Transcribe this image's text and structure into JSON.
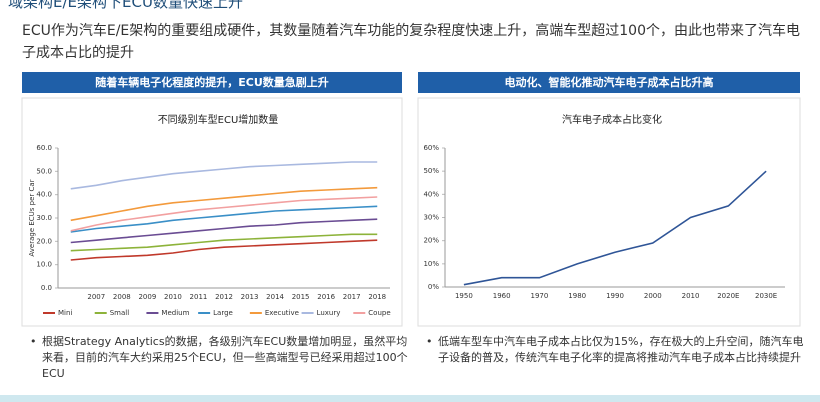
{
  "header": {
    "title": "域架构E/E架构下ECU数量快速上升",
    "lead": "ECU作为汽车E/E架构的重要组成硬件，其数量随着汽车功能的复杂程度快速上升，高端车型超过100个，由此也带来了汽车电子成本占比的提升"
  },
  "sections": [
    {
      "heading": "随着车辆电子化程度的提升，ECU数量急剧上升",
      "bullet": "根据Strategy Analytics的数据，各级别汽车ECU数量增加明显，虽然平均来看，目前的汽车大约采用25个ECU，但一些高端型号已经采用超过100个ECU"
    },
    {
      "heading": "电动化、智能化推动汽车电子成本占比升高",
      "bullet": "低端车型车中汽车电子成本占比仅为15%，存在极大的上升空间，随汽车电子设备的普及，传统汽车电子化率的提高将推动汽车电子成本占比持续提升"
    }
  ],
  "chart_data": [
    {
      "type": "line",
      "title": "不同级别车型ECU增加数量",
      "y_label": "Average ECUs per Car",
      "grid": false,
      "legend": "bottom",
      "categories": [
        null,
        "2007",
        "2008",
        "2009",
        "2010",
        "2011",
        "2012",
        "2013",
        "2014",
        "2015",
        "2016",
        "2017",
        "2018"
      ],
      "ylim": [
        0,
        60
      ],
      "yticks": [
        {
          "value": 0,
          "label": "0.0"
        },
        {
          "value": 10,
          "label": "10.0"
        },
        {
          "value": 20,
          "label": "20.0"
        },
        {
          "value": 30,
          "label": "30.0"
        },
        {
          "value": 40,
          "label": "40.0"
        },
        {
          "value": 50,
          "label": "50.0"
        },
        {
          "value": 60,
          "label": "60.0"
        }
      ],
      "series": [
        {
          "name": "Mini",
          "color": "#c0392b",
          "values": [
            12,
            13,
            13.5,
            14,
            15,
            16.5,
            17.5,
            18,
            18.5,
            19,
            19.5,
            20,
            20.5
          ]
        },
        {
          "name": "Small",
          "color": "#8db33a",
          "values": [
            16,
            16.5,
            17,
            17.5,
            18.5,
            19.5,
            20.5,
            21,
            21.5,
            22,
            22.5,
            23,
            23
          ]
        },
        {
          "name": "Medium",
          "color": "#6a4c93",
          "values": [
            19.5,
            20.5,
            21.5,
            22.5,
            23.5,
            24.5,
            25.5,
            26.5,
            27,
            28,
            28.5,
            29,
            29.5
          ]
        },
        {
          "name": "Large",
          "color": "#3a8fc7",
          "values": [
            24,
            25.5,
            26.5,
            27.5,
            29,
            30,
            31,
            32,
            33,
            33.5,
            34,
            34.5,
            35
          ]
        },
        {
          "name": "Executive",
          "color": "#f39a3c",
          "values": [
            29,
            31,
            33,
            35,
            36.5,
            37.5,
            38.5,
            39.5,
            40.5,
            41.5,
            42,
            42.5,
            43
          ]
        },
        {
          "name": "Luxury",
          "color": "#a9b9e0",
          "values": [
            42.5,
            44,
            46,
            47.5,
            49,
            50,
            51,
            52,
            52.5,
            53,
            53.5,
            54,
            54
          ]
        },
        {
          "name": "Coupe",
          "color": "#f2a0a0",
          "values": [
            24.5,
            27,
            29,
            30.5,
            32,
            33.5,
            34.5,
            35.5,
            36.5,
            37.5,
            38,
            38.5,
            39
          ]
        }
      ]
    },
    {
      "type": "line",
      "title": "汽车电子成本占比变化",
      "grid": false,
      "categories": [
        "1950",
        "1960",
        "1970",
        "1980",
        "1990",
        "2000",
        "2010",
        "2020E",
        "2030E"
      ],
      "ylim": [
        0,
        60
      ],
      "yticks": [
        {
          "value": 0,
          "label": "0%"
        },
        {
          "value": 10,
          "label": "10%"
        },
        {
          "value": 20,
          "label": "20%"
        },
        {
          "value": 30,
          "label": "30%"
        },
        {
          "value": 40,
          "label": "40%"
        },
        {
          "value": 50,
          "label": "50%"
        },
        {
          "value": 60,
          "label": "60%"
        }
      ],
      "series": [
        {
          "color": "#2f5597",
          "values": [
            1,
            4,
            4,
            10,
            15,
            19,
            30,
            35,
            50
          ]
        }
      ]
    }
  ]
}
